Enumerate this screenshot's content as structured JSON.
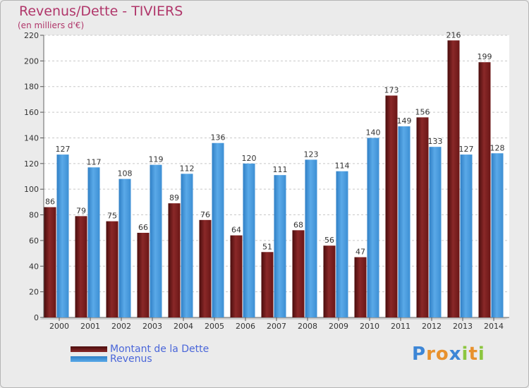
{
  "chart_data": {
    "type": "bar",
    "title": "Revenus/Dette - TIVIERS",
    "subtitle": "(en milliers d'€)",
    "categories": [
      "2000",
      "2001",
      "2002",
      "2003",
      "2004",
      "2005",
      "2006",
      "2007",
      "2008",
      "2009",
      "2010",
      "2011",
      "2012",
      "2013",
      "2014"
    ],
    "series": [
      {
        "name": "Montant de la Dette",
        "color": "#7a1a1a",
        "values": [
          86,
          79,
          75,
          66,
          89,
          76,
          64,
          51,
          68,
          56,
          47,
          173,
          156,
          216,
          199
        ]
      },
      {
        "name": "Revenus",
        "color": "#3f95dc",
        "values": [
          127,
          117,
          108,
          119,
          112,
          136,
          120,
          111,
          123,
          114,
          140,
          149,
          133,
          127,
          128
        ]
      }
    ],
    "ylim": [
      0,
      220
    ],
    "yticks": [
      0,
      20,
      40,
      60,
      80,
      100,
      120,
      140,
      160,
      180,
      200,
      220
    ],
    "grid": true,
    "legend_position": "bottom-left"
  },
  "logo": {
    "text": "Proxiti",
    "letters": [
      {
        "ch": "P",
        "color": "#3d86d6"
      },
      {
        "ch": "r",
        "color": "#e8912d"
      },
      {
        "ch": "o",
        "color": "#e8912d"
      },
      {
        "ch": "x",
        "color": "#3d86d6"
      },
      {
        "ch": "i",
        "color": "#8cc63f"
      },
      {
        "ch": "t",
        "color": "#e8912d"
      },
      {
        "ch": "i",
        "color": "#8cc63f"
      }
    ]
  }
}
